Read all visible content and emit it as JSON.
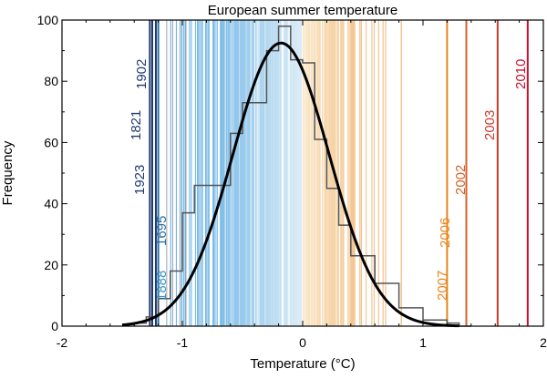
{
  "chart_data": {
    "type": "histogram",
    "title": "European summer temperature",
    "xlabel": "Temperature (°C)",
    "ylabel": "Frequency",
    "xlim": [
      -2,
      2
    ],
    "ylim": [
      0,
      100
    ],
    "x_ticks": [
      -2,
      -1,
      0,
      1,
      2
    ],
    "x_tick_labels": [
      "-2",
      "-1",
      "0",
      "1",
      "2"
    ],
    "y_ticks": [
      0,
      20,
      40,
      60,
      80,
      100
    ],
    "y_tick_labels": [
      "0",
      "20",
      "40",
      "60",
      "80",
      "100"
    ],
    "grid": false,
    "histogram": {
      "bin_width": 0.1,
      "bins": [
        {
          "left": -1.4,
          "count": 1
        },
        {
          "left": -1.3,
          "count": 3
        },
        {
          "left": -1.2,
          "count": 9
        },
        {
          "left": -1.1,
          "count": 18
        },
        {
          "left": -1.0,
          "count": 37
        },
        {
          "left": -0.9,
          "count": 46
        },
        {
          "left": -0.7,
          "count": 46
        },
        {
          "left": -0.6,
          "count": 63
        },
        {
          "left": -0.5,
          "count": 73
        },
        {
          "left": -0.3,
          "count": 90
        },
        {
          "left": -0.2,
          "count": 98
        },
        {
          "left": -0.1,
          "count": 87
        },
        {
          "left": 0.0,
          "count": 86
        },
        {
          "left": 0.1,
          "count": 61
        },
        {
          "left": 0.2,
          "count": 45
        },
        {
          "left": 0.3,
          "count": 33
        },
        {
          "left": 0.4,
          "count": 23
        },
        {
          "left": 0.6,
          "count": 14
        },
        {
          "left": 0.8,
          "count": 6
        },
        {
          "left": 1.0,
          "count": 2
        },
        {
          "left": 1.2,
          "count": 1
        },
        {
          "left": 1.3,
          "count": 0
        }
      ]
    },
    "fit_curve": {
      "type": "gaussian",
      "mean": -0.18,
      "sd": 0.4,
      "peak": 92.5,
      "x_range": [
        -1.5,
        1.3
      ]
    },
    "highlighted_years": [
      {
        "year": "1902",
        "temp": -1.27,
        "color": "#1e3a6e"
      },
      {
        "year": "1821",
        "temp": -1.25,
        "color": "#1e3a6e"
      },
      {
        "year": "1923",
        "temp": -1.22,
        "color": "#1e3a6e"
      },
      {
        "year": "1695",
        "temp": -1.2,
        "color": "#2d6fa3"
      },
      {
        "year": "1888",
        "temp": -1.2,
        "color": "#3b93c7"
      },
      {
        "year": "2007",
        "temp": 1.2,
        "color": "#e9851d"
      },
      {
        "year": "2006",
        "temp": 1.2,
        "color": "#e9851d"
      },
      {
        "year": "2002",
        "temp": 1.36,
        "color": "#d4612b"
      },
      {
        "year": "2003",
        "temp": 1.62,
        "color": "#c63b2c"
      },
      {
        "year": "2010",
        "temp": 1.87,
        "color": "#c8102e"
      }
    ],
    "colors": {
      "cold_line": "#1e3a6e",
      "cold_fill": "#3b93c7",
      "warm_fill": "#e9a04a",
      "hot_line": "#c8102e",
      "histogram_outline": "#555555",
      "fit_curve": "#000000"
    }
  }
}
